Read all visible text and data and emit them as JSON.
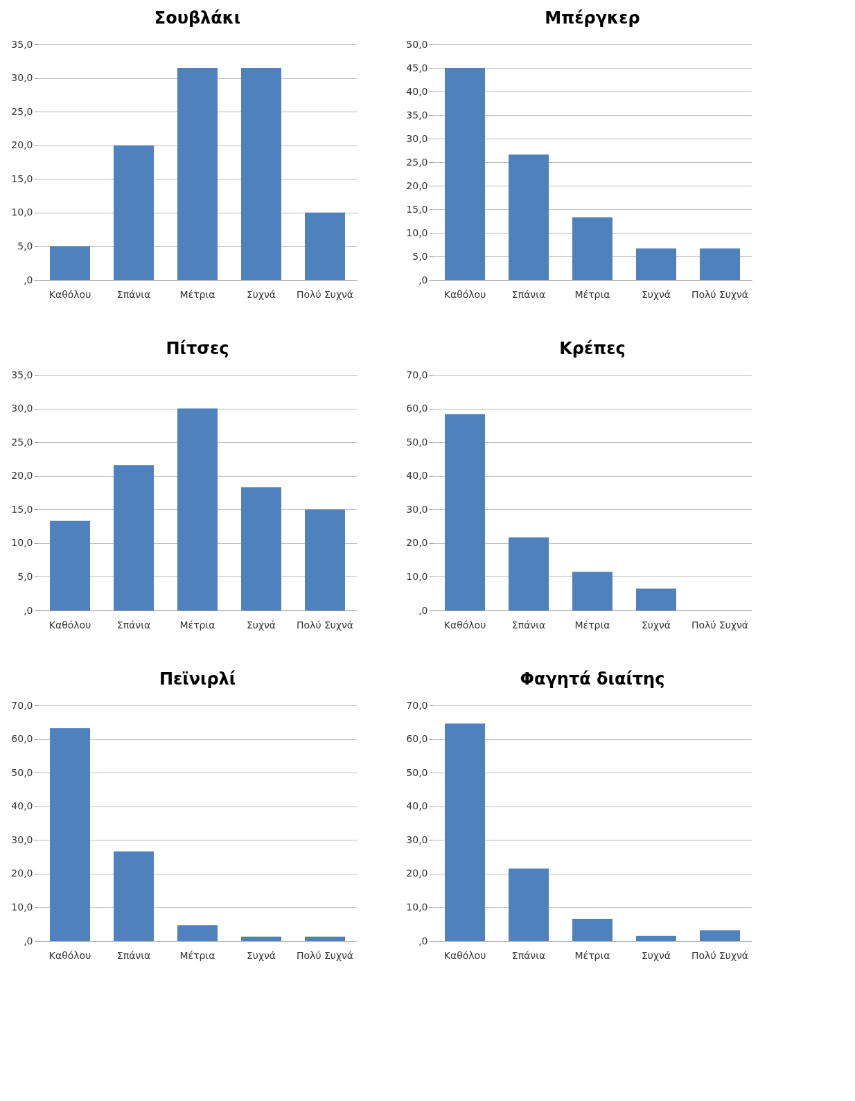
{
  "chart_data": [
    {
      "type": "bar",
      "title": "Σουβλάκι",
      "categories": [
        "Καθόλου",
        "Σπάνια",
        "Μέτρια",
        "Συχνά",
        "Πολύ Συχνά"
      ],
      "values": [
        5,
        20,
        31.5,
        31.5,
        10
      ],
      "color": "#4f81bd",
      "ylim": [
        0,
        35
      ],
      "yticks": [
        {
          "value": 0,
          "label": ",0"
        },
        {
          "value": 5,
          "label": "5,0"
        },
        {
          "value": 10,
          "label": "10,0"
        },
        {
          "value": 15,
          "label": "15,0"
        },
        {
          "value": 20,
          "label": "20,0"
        },
        {
          "value": 25,
          "label": "25,0"
        },
        {
          "value": 30,
          "label": "30,0"
        },
        {
          "value": 35,
          "label": "35,0"
        }
      ],
      "grid": "y"
    },
    {
      "type": "bar",
      "title": "Μπέργκερ",
      "categories": [
        "Καθόλου",
        "Σπάνια",
        "Μέτρια",
        "Συχνά",
        "Πολύ Συχνά"
      ],
      "values": [
        45,
        26.6,
        13.3,
        6.7,
        6.7
      ],
      "color": "#4f81bd",
      "ylim": [
        0,
        50
      ],
      "yticks": [
        {
          "value": 0,
          "label": ",0"
        },
        {
          "value": 5,
          "label": "5,0"
        },
        {
          "value": 10,
          "label": "10,0"
        },
        {
          "value": 15,
          "label": "15,0"
        },
        {
          "value": 20,
          "label": "20,0"
        },
        {
          "value": 25,
          "label": "25,0"
        },
        {
          "value": 30,
          "label": "30,0"
        },
        {
          "value": 35,
          "label": "35,0"
        },
        {
          "value": 40,
          "label": "40,0"
        },
        {
          "value": 45,
          "label": "45,0"
        },
        {
          "value": 50,
          "label": "50,0"
        }
      ],
      "grid": "y"
    },
    {
      "type": "bar",
      "title": "Πίτσες",
      "categories": [
        "Καθόλου",
        "Σπάνια",
        "Μέτρια",
        "Συχνά",
        "Πολύ Συχνά"
      ],
      "values": [
        13.3,
        21.6,
        30,
        18.3,
        15
      ],
      "color": "#4f81bd",
      "ylim": [
        0,
        35
      ],
      "yticks": [
        {
          "value": 0,
          "label": ",0"
        },
        {
          "value": 5,
          "label": "5,0"
        },
        {
          "value": 10,
          "label": "10,0"
        },
        {
          "value": 15,
          "label": "15,0"
        },
        {
          "value": 20,
          "label": "20,0"
        },
        {
          "value": 25,
          "label": "25,0"
        },
        {
          "value": 30,
          "label": "30,0"
        },
        {
          "value": 35,
          "label": "35,0"
        }
      ],
      "grid": "y"
    },
    {
      "type": "bar",
      "title": "Κρέπες",
      "categories": [
        "Καθόλου",
        "Σπάνια",
        "Μέτρια",
        "Συχνά",
        "Πολύ Συχνά"
      ],
      "values": [
        58.3,
        21.7,
        11.5,
        6.5,
        0
      ],
      "color": "#4f81bd",
      "ylim": [
        0,
        70
      ],
      "yticks": [
        {
          "value": 0,
          "label": ",0"
        },
        {
          "value": 10,
          "label": "10,0"
        },
        {
          "value": 20,
          "label": "20,0"
        },
        {
          "value": 30,
          "label": "30,0"
        },
        {
          "value": 40,
          "label": "40,0"
        },
        {
          "value": 50,
          "label": "50,0"
        },
        {
          "value": 60,
          "label": "60,0"
        },
        {
          "value": 70,
          "label": "70,0"
        }
      ],
      "grid": "y"
    },
    {
      "type": "bar",
      "title": "Πεϊνιρλί",
      "categories": [
        "Καθόλου",
        "Σπάνια",
        "Μέτρια",
        "Συχνά",
        "Πολύ Συχνά"
      ],
      "values": [
        63.2,
        26.6,
        4.7,
        1.3,
        1.3
      ],
      "color": "#4f81bd",
      "ylim": [
        0,
        70
      ],
      "yticks": [
        {
          "value": 0,
          "label": ",0"
        },
        {
          "value": 10,
          "label": "10,0"
        },
        {
          "value": 20,
          "label": "20,0"
        },
        {
          "value": 30,
          "label": "30,0"
        },
        {
          "value": 40,
          "label": "40,0"
        },
        {
          "value": 50,
          "label": "50,0"
        },
        {
          "value": 60,
          "label": "60,0"
        },
        {
          "value": 70,
          "label": "70,0"
        }
      ],
      "grid": "y"
    },
    {
      "type": "bar",
      "title": "Φαγητά διαίτης",
      "categories": [
        "Καθόλου",
        "Σπάνια",
        "Μέτρια",
        "Συχνά",
        "Πολύ Συχνά"
      ],
      "values": [
        64.6,
        21.5,
        6.6,
        1.5,
        3.2
      ],
      "color": "#4f81bd",
      "ylim": [
        0,
        70
      ],
      "yticks": [
        {
          "value": 0,
          "label": ",0"
        },
        {
          "value": 10,
          "label": "10,0"
        },
        {
          "value": 20,
          "label": "20,0"
        },
        {
          "value": 30,
          "label": "30,0"
        },
        {
          "value": 40,
          "label": "40,0"
        },
        {
          "value": 50,
          "label": "50,0"
        },
        {
          "value": 60,
          "label": "60,0"
        },
        {
          "value": 70,
          "label": "70,0"
        }
      ],
      "grid": "y"
    }
  ]
}
